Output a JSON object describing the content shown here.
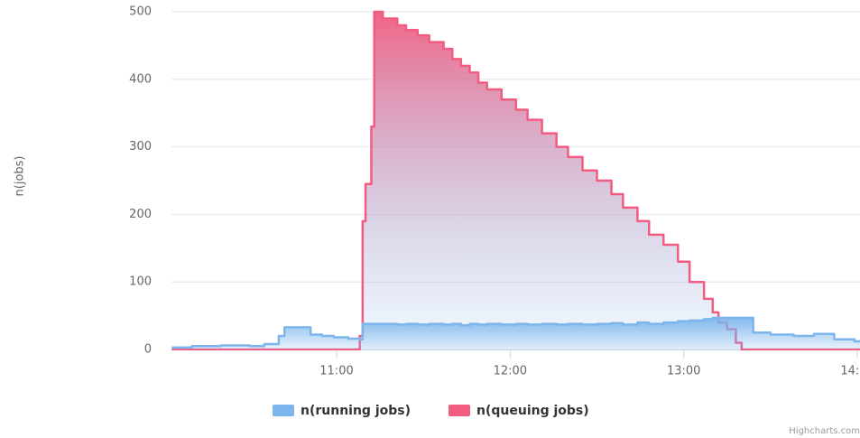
{
  "chart_data": {
    "type": "area-step",
    "y_label": "n(jobs)",
    "credits": "Highcharts.com",
    "x": [
      603,
      610,
      620,
      630,
      635,
      640,
      642,
      651,
      655,
      659,
      664,
      668,
      669,
      670,
      672,
      673,
      676,
      681,
      684,
      688,
      692,
      697,
      700,
      703,
      706,
      709,
      712,
      717,
      722,
      726,
      731,
      736,
      740,
      745,
      750,
      755,
      759,
      764,
      768,
      773,
      778,
      782,
      787,
      790,
      792,
      795,
      798,
      800,
      804,
      810,
      818,
      825,
      832,
      839,
      841
    ],
    "series": [
      {
        "name": "n(queuing jobs)",
        "color": "#f15c80",
        "values": [
          0,
          0,
          0,
          0,
          0,
          0,
          0,
          0,
          0,
          0,
          0,
          20,
          190,
          245,
          330,
          500,
          490,
          480,
          473,
          465,
          455,
          445,
          430,
          420,
          410,
          395,
          385,
          370,
          355,
          340,
          320,
          300,
          285,
          265,
          250,
          230,
          210,
          190,
          170,
          155,
          130,
          100,
          75,
          55,
          40,
          30,
          10,
          0,
          0,
          0,
          0,
          0,
          0,
          0,
          0
        ]
      },
      {
        "name": "n(running jobs)",
        "color": "#7cb5ec",
        "values": [
          3,
          5,
          6,
          5,
          8,
          20,
          33,
          22,
          20,
          18,
          16,
          15,
          38,
          38,
          38,
          38,
          38,
          37,
          38,
          37,
          38,
          37,
          38,
          36,
          38,
          37,
          38,
          37,
          38,
          37,
          38,
          37,
          38,
          37,
          38,
          39,
          37,
          40,
          38,
          40,
          42,
          43,
          45,
          47,
          47,
          47,
          47,
          47,
          25,
          22,
          20,
          23,
          15,
          12,
          14
        ]
      }
    ],
    "xlim": [
      603,
      841
    ],
    "xticks": [
      {
        "value": 660,
        "label": "11:00"
      },
      {
        "value": 720,
        "label": "12:00"
      },
      {
        "value": 780,
        "label": "13:00"
      },
      {
        "value": 840,
        "label": "14:00"
      }
    ],
    "ylim": [
      0,
      500
    ],
    "yticks": [
      0,
      100,
      200,
      300,
      400,
      500
    ],
    "grid": true,
    "legend_order": [
      1,
      0
    ]
  }
}
